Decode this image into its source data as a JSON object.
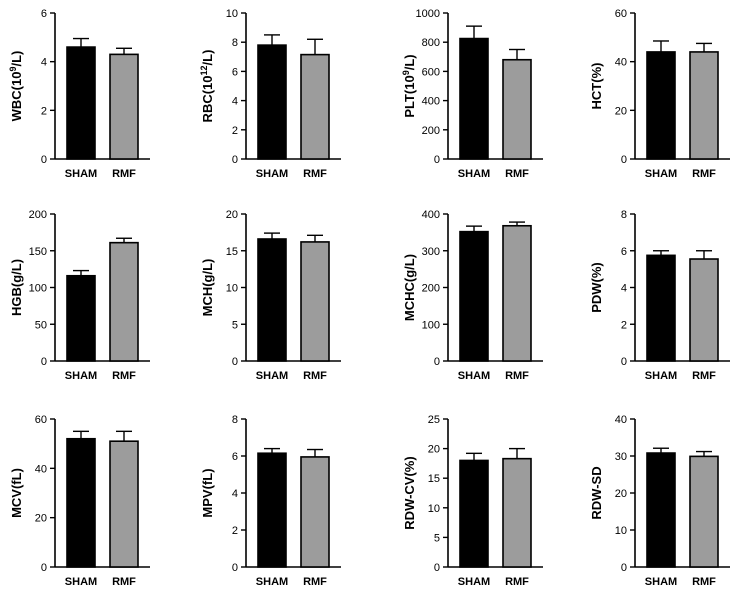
{
  "figure": {
    "categories": [
      "SHAM",
      "RMF"
    ],
    "colors": {
      "SHAM": "#000000",
      "RMF": "#9c9c9c",
      "axis": "#000000",
      "background": "#ffffff"
    }
  },
  "chart_data": [
    {
      "type": "bar",
      "ylabel": "WBC(10",
      "ylabel_sup": "9",
      "ylabel_tail": "/L)",
      "ylim": [
        0,
        6
      ],
      "ticks": [
        0,
        2,
        4,
        6
      ],
      "categories": [
        "SHAM",
        "RMF"
      ],
      "values": [
        4.6,
        4.3
      ],
      "errors": [
        0.35,
        0.25
      ]
    },
    {
      "type": "bar",
      "ylabel": "RBC(10",
      "ylabel_sup": "12",
      "ylabel_tail": "/L)",
      "ylim": [
        0,
        10
      ],
      "ticks": [
        0,
        2,
        4,
        6,
        8,
        10
      ],
      "categories": [
        "SHAM",
        "RMF"
      ],
      "values": [
        7.8,
        7.15
      ],
      "errors": [
        0.7,
        1.05
      ]
    },
    {
      "type": "bar",
      "ylabel": "PLT(10",
      "ylabel_sup": "9",
      "ylabel_tail": "/L)",
      "ylim": [
        0,
        1000
      ],
      "ticks": [
        0,
        200,
        400,
        600,
        800,
        1000
      ],
      "categories": [
        "SHAM",
        "RMF"
      ],
      "values": [
        825,
        680
      ],
      "errors": [
        85,
        70
      ]
    },
    {
      "type": "bar",
      "ylabel": "HCT(%)",
      "ylim": [
        0,
        60
      ],
      "ticks": [
        0,
        20,
        40,
        60
      ],
      "categories": [
        "SHAM",
        "RMF"
      ],
      "values": [
        44,
        44
      ],
      "errors": [
        4.5,
        3.5
      ]
    },
    {
      "type": "bar",
      "ylabel": "HGB(g/L)",
      "ylim": [
        0,
        200
      ],
      "ticks": [
        0,
        50,
        100,
        150,
        200
      ],
      "categories": [
        "SHAM",
        "RMF"
      ],
      "values": [
        116,
        161
      ],
      "errors": [
        7,
        6
      ]
    },
    {
      "type": "bar",
      "ylabel": "MCH(g/L)",
      "ylim": [
        0,
        20
      ],
      "ticks": [
        0,
        5,
        10,
        15,
        20
      ],
      "categories": [
        "SHAM",
        "RMF"
      ],
      "values": [
        16.6,
        16.2
      ],
      "errors": [
        0.8,
        0.9
      ]
    },
    {
      "type": "bar",
      "ylabel": "MCHC(g/L)",
      "ylim": [
        0,
        400
      ],
      "ticks": [
        0,
        100,
        200,
        300,
        400
      ],
      "categories": [
        "SHAM",
        "RMF"
      ],
      "values": [
        352,
        368
      ],
      "errors": [
        15,
        10
      ]
    },
    {
      "type": "bar",
      "ylabel": "PDW(%)",
      "ylim": [
        0,
        8
      ],
      "ticks": [
        0,
        2,
        4,
        6,
        8
      ],
      "categories": [
        "SHAM",
        "RMF"
      ],
      "values": [
        5.75,
        5.55
      ],
      "errors": [
        0.25,
        0.45
      ]
    },
    {
      "type": "bar",
      "ylabel": "MCV(fL)",
      "ylim": [
        0,
        60
      ],
      "ticks": [
        0,
        20,
        40,
        60
      ],
      "categories": [
        "SHAM",
        "RMF"
      ],
      "values": [
        52,
        51
      ],
      "errors": [
        3,
        4
      ]
    },
    {
      "type": "bar",
      "ylabel": "MPV(fL)",
      "ylim": [
        0,
        8
      ],
      "ticks": [
        0,
        2,
        4,
        6,
        8
      ],
      "categories": [
        "SHAM",
        "RMF"
      ],
      "values": [
        6.15,
        5.95
      ],
      "errors": [
        0.25,
        0.4
      ]
    },
    {
      "type": "bar",
      "ylabel": "RDW-CV(%)",
      "ylim": [
        0,
        25
      ],
      "ticks": [
        0,
        5,
        10,
        15,
        20,
        25
      ],
      "categories": [
        "SHAM",
        "RMF"
      ],
      "values": [
        18.0,
        18.3
      ],
      "errors": [
        1.2,
        1.7
      ]
    },
    {
      "type": "bar",
      "ylabel": "RDW-SD",
      "ylim": [
        0,
        40
      ],
      "ticks": [
        0,
        10,
        20,
        30,
        40
      ],
      "categories": [
        "SHAM",
        "RMF"
      ],
      "values": [
        30.8,
        29.9
      ],
      "errors": [
        1.3,
        1.3
      ]
    }
  ]
}
